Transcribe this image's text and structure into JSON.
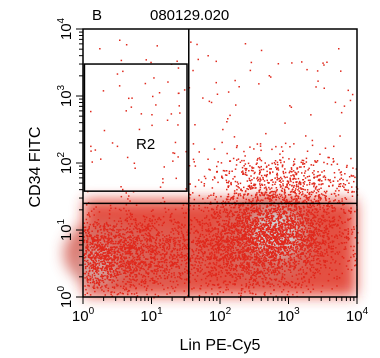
{
  "chart_data": {
    "type": "scatter",
    "panel_label": "B",
    "title": "080129.020",
    "xlabel": "Lin PE-Cy5",
    "ylabel": "CD34 FITC",
    "x_scale": "log",
    "y_scale": "log",
    "xlim": [
      1,
      10000
    ],
    "ylim": [
      1,
      10000
    ],
    "x_ticks": [
      {
        "base": "10",
        "exp": "0"
      },
      {
        "base": "10",
        "exp": "1"
      },
      {
        "base": "10",
        "exp": "2"
      },
      {
        "base": "10",
        "exp": "3"
      },
      {
        "base": "10",
        "exp": "4"
      }
    ],
    "y_ticks": [
      {
        "base": "10",
        "exp": "0"
      },
      {
        "base": "10",
        "exp": "1"
      },
      {
        "base": "10",
        "exp": "2"
      },
      {
        "base": "10",
        "exp": "3"
      },
      {
        "base": "10",
        "exp": "4"
      }
    ],
    "quadrant_lines": {
      "x": 35,
      "y": 25
    },
    "gate": {
      "name": "R2",
      "x": [
        1.05,
        33
      ],
      "y": [
        38,
        3000
      ]
    },
    "populations": [
      {
        "x": 1.8,
        "y": 4,
        "count": 1400
      },
      {
        "x": 9,
        "y": 5,
        "count": 900
      },
      {
        "x": 500,
        "y": 8,
        "count": 2600
      },
      {
        "x": 700,
        "y": 45,
        "count": 700
      },
      {
        "x": 300,
        "y": 3,
        "count": 600
      },
      {
        "x": 3000,
        "y": 20,
        "count": 250
      }
    ],
    "grid": false,
    "colors": {
      "low": "#e03020",
      "mid": "#d86a60",
      "high": "#cfd8da"
    }
  }
}
